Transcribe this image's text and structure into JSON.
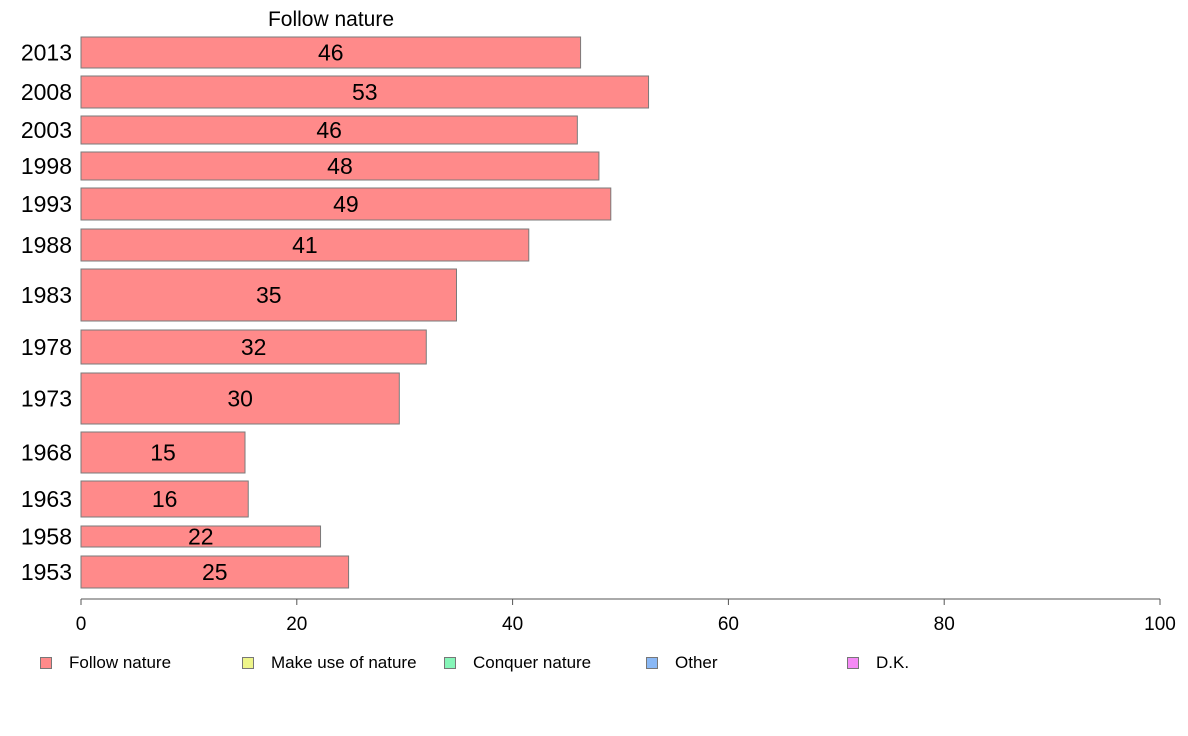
{
  "chart_data": {
    "type": "bar",
    "orientation": "horizontal",
    "panel_title": "Follow nature",
    "categories": [
      "2013",
      "2008",
      "2003",
      "1998",
      "1993",
      "1988",
      "1983",
      "1978",
      "1973",
      "1968",
      "1963",
      "1958",
      "1953"
    ],
    "series": [
      {
        "name": "Follow nature",
        "color": "#ff8a8a",
        "values": [
          46,
          53,
          46,
          48,
          49,
          41,
          35,
          32,
          30,
          15,
          16,
          22,
          25
        ],
        "value_labels": [
          "46",
          "53",
          "46",
          "48",
          "49",
          "41",
          "35",
          "32",
          "30",
          "15",
          "16",
          "22",
          "25"
        ]
      }
    ],
    "bar_lengths": [
      46.3,
      52.6,
      46.0,
      48.0,
      49.1,
      41.5,
      34.8,
      32.0,
      29.5,
      15.2,
      15.5,
      22.2,
      24.8
    ],
    "xlim": [
      0,
      100
    ],
    "xticks": [
      "0",
      "20",
      "40",
      "60",
      "80",
      "100"
    ],
    "grid": false,
    "legend_position": "bottom",
    "legend": [
      {
        "label": "Follow nature",
        "color": "#ff8a8a"
      },
      {
        "label": "Make use of nature",
        "color": "#eef58a"
      },
      {
        "label": "Conquer nature",
        "color": "#86f5b8"
      },
      {
        "label": "Other",
        "color": "#8ab8f5"
      },
      {
        "label": "D.K.",
        "color": "#f58af5"
      }
    ]
  }
}
